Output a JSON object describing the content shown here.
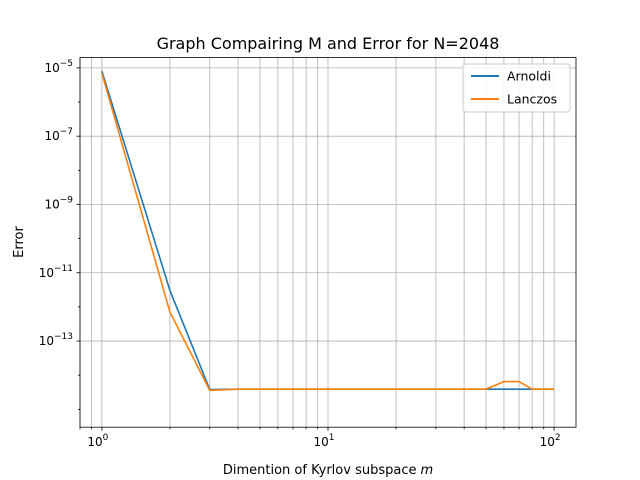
{
  "chart_data": {
    "type": "line",
    "title": "Graph Compairing M and Error for N=2048",
    "xlabel": "Dimention of Kyrlov subspace",
    "xlabel_var": "m",
    "ylabel": "Error",
    "xscale": "log",
    "yscale": "log",
    "xlim": [
      0.8,
      125
    ],
    "ylim": [
      3e-16,
      2e-05
    ],
    "grid": "both-major-minor-x",
    "legend_position": "top-right",
    "x_ticks": [
      {
        "base": "10",
        "exp": "0",
        "value": 1
      },
      {
        "base": "10",
        "exp": "1",
        "value": 10
      },
      {
        "base": "10",
        "exp": "2",
        "value": 100
      }
    ],
    "y_ticks": [
      {
        "base": "10",
        "exp": "−5",
        "value": 1e-05
      },
      {
        "base": "10",
        "exp": "−7",
        "value": 1e-07
      },
      {
        "base": "10",
        "exp": "−9",
        "value": 1e-09
      },
      {
        "base": "10",
        "exp": "−11",
        "value": 1e-11
      },
      {
        "base": "10",
        "exp": "−13",
        "value": 1e-13
      }
    ],
    "series": [
      {
        "name": "Arnoldi",
        "color": "#1f77b4",
        "x": [
          1,
          2,
          3,
          4,
          5,
          10,
          20,
          30,
          50,
          60,
          70,
          80,
          100
        ],
        "y": [
          8e-06,
          3e-12,
          3.8e-15,
          3.9e-15,
          3.9e-15,
          3.9e-15,
          3.9e-15,
          3.9e-15,
          3.9e-15,
          3.9e-15,
          3.9e-15,
          3.9e-15,
          3.9e-15
        ]
      },
      {
        "name": "Lanczos",
        "color": "#ff7f0e",
        "x": [
          1,
          2,
          3,
          4,
          5,
          10,
          20,
          30,
          50,
          60,
          70,
          80,
          100
        ],
        "y": [
          7e-06,
          7e-13,
          3.6e-15,
          3.9e-15,
          3.9e-15,
          3.9e-15,
          3.9e-15,
          3.9e-15,
          3.9e-15,
          6.5e-15,
          6.5e-15,
          3.9e-15,
          3.9e-15
        ]
      }
    ]
  }
}
